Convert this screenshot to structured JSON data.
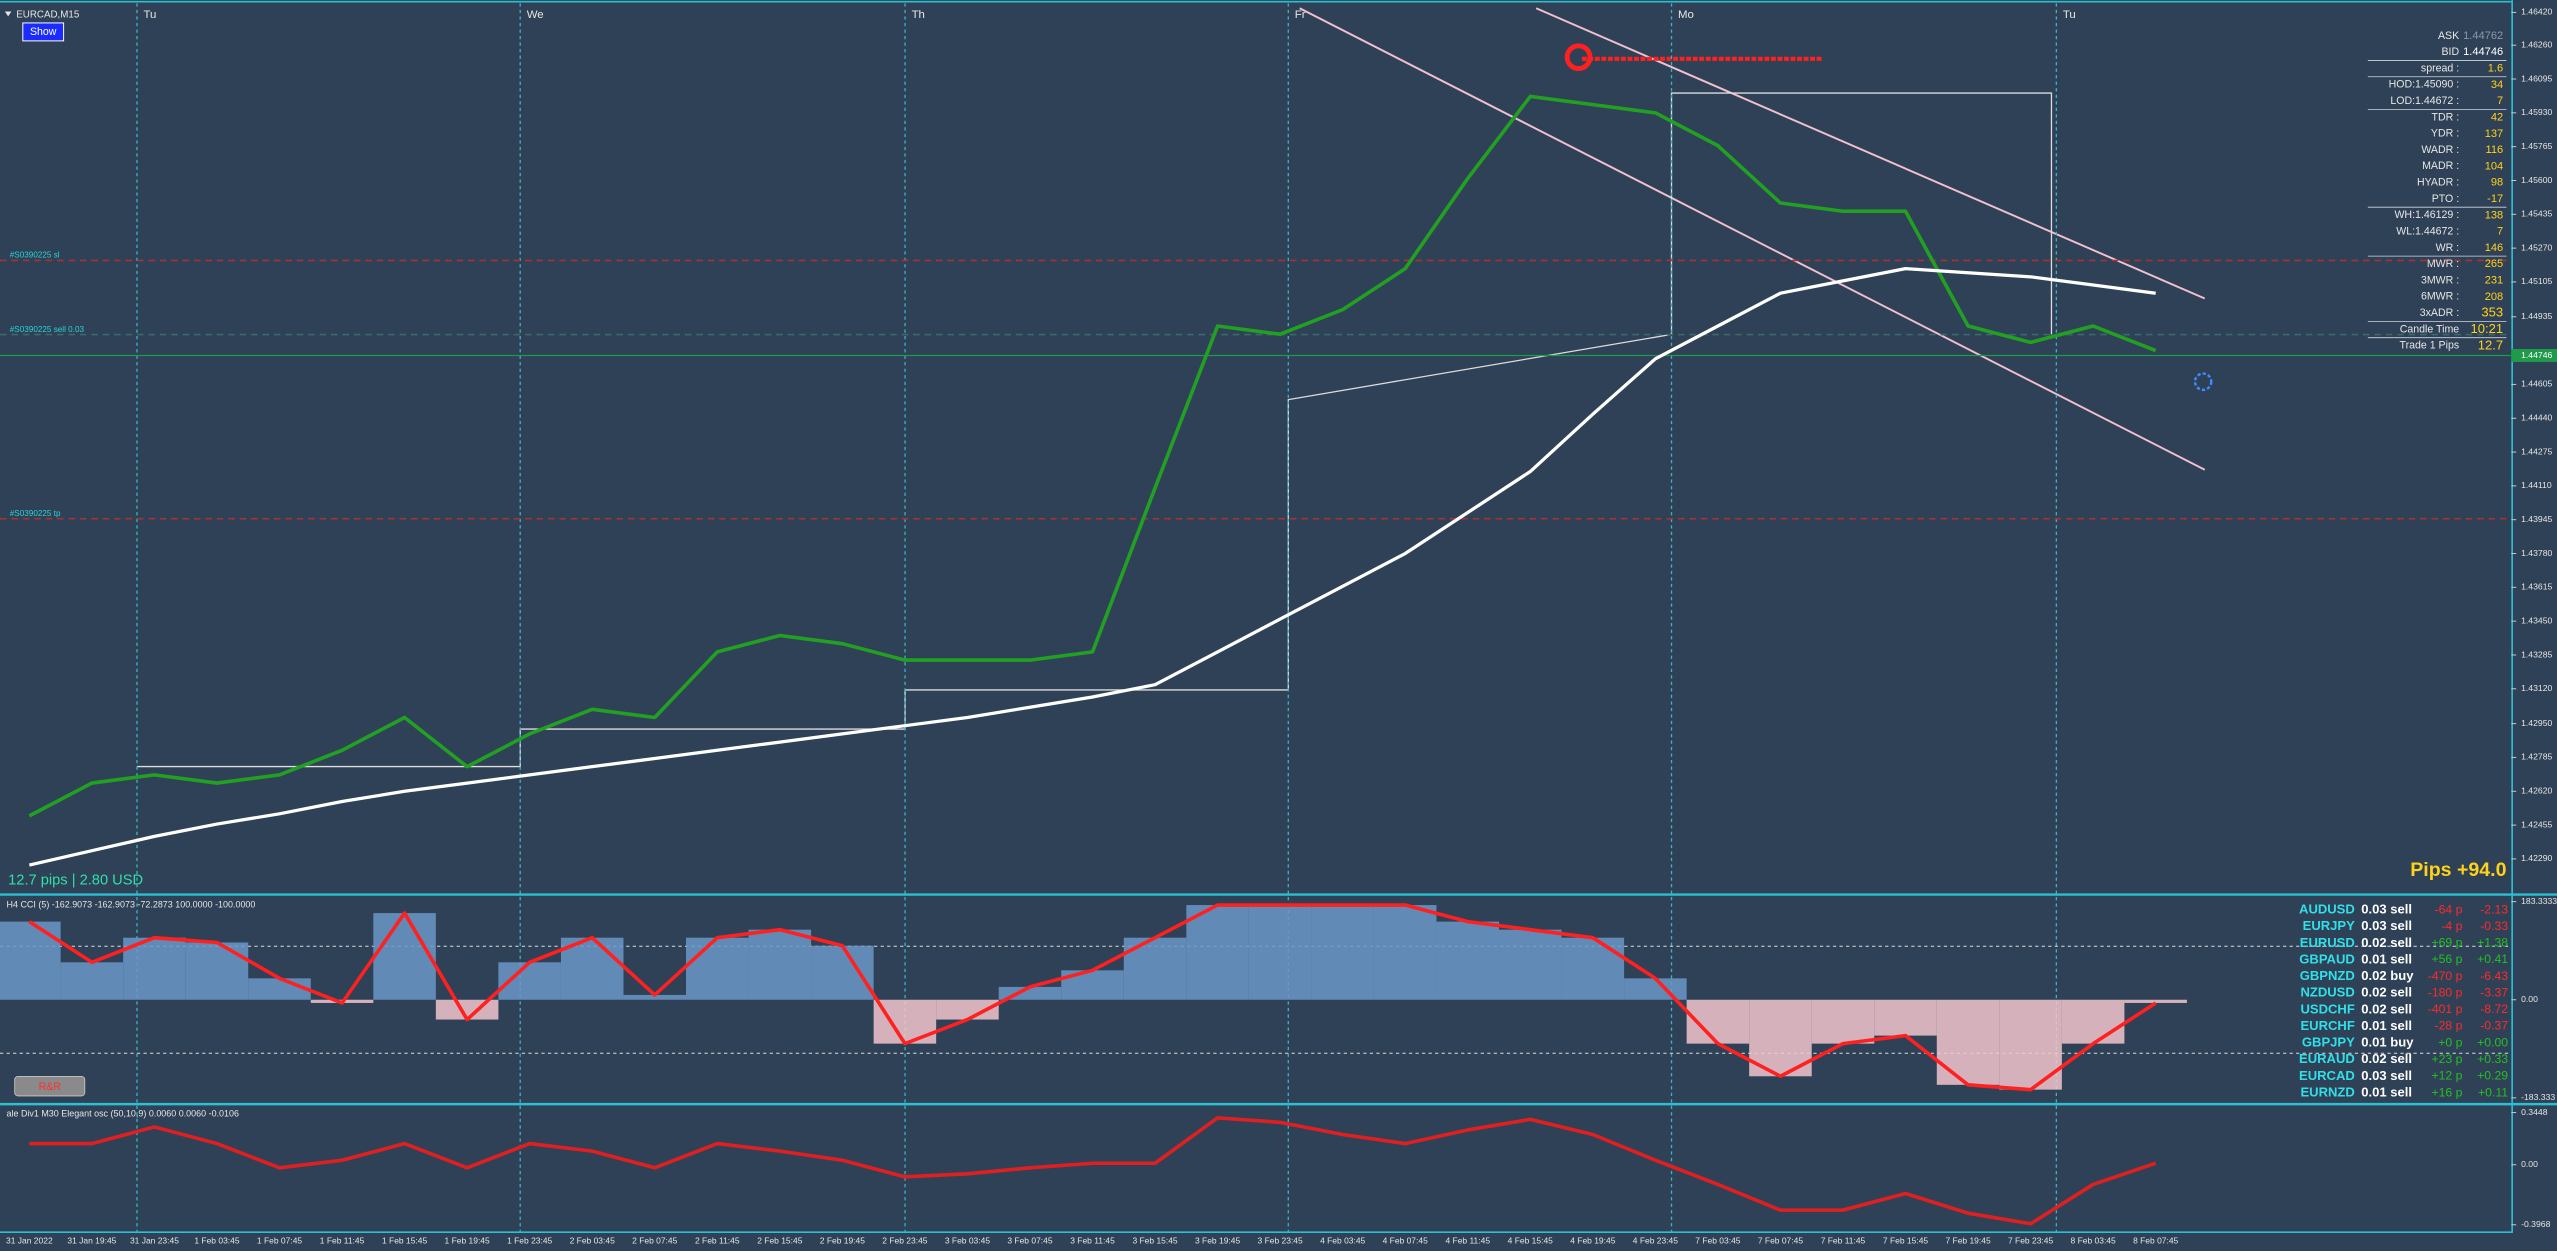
{
  "chart_data": [
    {
      "type": "line",
      "title": "EURCAD,M15",
      "x": [
        "31 Jan 2022",
        "31 Jan 19:45",
        "31 Jan 23:45",
        "1 Feb 03:45",
        "1 Feb 07:45",
        "1 Feb 11:45",
        "1 Feb 15:45",
        "1 Feb 19:45",
        "1 Feb 23:45",
        "2 Feb 03:45",
        "2 Feb 07:45",
        "2 Feb 11:45",
        "2 Feb 15:45",
        "2 Feb 19:45",
        "2 Feb 23:45",
        "3 Feb 03:45",
        "3 Feb 07:45",
        "3 Feb 11:45",
        "3 Feb 15:45",
        "3 Feb 19:45",
        "3 Feb 23:45",
        "4 Feb 03:45",
        "4 Feb 07:45",
        "4 Feb 11:45",
        "4 Feb 15:45",
        "4 Feb 19:45",
        "4 Feb 23:45",
        "7 Feb 03:45",
        "7 Feb 07:45",
        "7 Feb 11:45",
        "7 Feb 15:45",
        "7 Feb 19:45",
        "7 Feb 23:45",
        "8 Feb 03:45",
        "8 Feb 07:45"
      ],
      "series": [
        {
          "color": "#22a022",
          "values": [
            1.425,
            1.4266,
            1.427,
            1.4266,
            1.427,
            1.4282,
            1.4298,
            1.4274,
            1.429,
            1.4302,
            1.4298,
            1.433,
            1.4338,
            1.4334,
            1.4326,
            1.4326,
            1.4326,
            1.433,
            1.441,
            1.4489,
            1.4485,
            1.4497,
            1.4517,
            1.4561,
            1.4601,
            1.4597,
            1.4593,
            1.4577,
            1.4549,
            1.4545,
            1.4545,
            1.4489,
            1.4481,
            1.4489,
            1.4477
          ]
        },
        {
          "color": "#ffffff",
          "values": [
            1.4226,
            1.4233,
            1.424,
            1.4246,
            1.4251,
            1.4257,
            1.4262,
            1.4266,
            1.427,
            1.4274,
            1.4278,
            1.4282,
            1.4286,
            1.429,
            1.4294,
            1.4298,
            1.4303,
            1.4308,
            1.4314,
            1.433,
            1.4346,
            1.4362,
            1.4378,
            1.4398,
            1.4418,
            1.4446,
            1.4473,
            1.4489,
            1.4505,
            1.4511,
            1.4517,
            1.4515,
            1.4513,
            1.4509,
            1.4505
          ]
        }
      ],
      "ylim": [
        1.4212,
        1.4648
      ],
      "yticks": [
        {
          "value": 1.4642,
          "label": "1.46420"
        },
        {
          "value": 1.4626,
          "label": "1.46260"
        },
        {
          "value": 1.46095,
          "label": "1.46095"
        },
        {
          "value": 1.4593,
          "label": "1.45930"
        },
        {
          "value": 1.45765,
          "label": "1.45765"
        },
        {
          "value": 1.456,
          "label": "1.45600"
        },
        {
          "value": 1.45435,
          "label": "1.45435"
        },
        {
          "value": 1.4527,
          "label": "1.45270"
        },
        {
          "value": 1.45105,
          "label": "1.45105"
        },
        {
          "value": 1.44935,
          "label": "1.44935"
        },
        {
          "value": 1.44605,
          "label": "1.44605"
        },
        {
          "value": 1.4444,
          "label": "1.44440"
        },
        {
          "value": 1.44275,
          "label": "1.44275"
        },
        {
          "value": 1.4411,
          "label": "1.44110"
        },
        {
          "value": 1.43945,
          "label": "1.43945"
        },
        {
          "value": 1.4378,
          "label": "1.43780"
        },
        {
          "value": 1.43615,
          "label": "1.43615"
        },
        {
          "value": 1.4345,
          "label": "1.43450"
        },
        {
          "value": 1.43285,
          "label": "1.43285"
        },
        {
          "value": 1.4312,
          "label": "1.43120"
        },
        {
          "value": 1.4295,
          "label": "1.42950"
        },
        {
          "value": 1.42785,
          "label": "1.42785"
        },
        {
          "value": 1.4262,
          "label": "1.42620"
        },
        {
          "value": 1.42455,
          "label": "1.42455"
        },
        {
          "value": 1.4229,
          "label": "1.42290"
        }
      ],
      "current_price": {
        "value": 1.44746,
        "label": "1.44746"
      },
      "levels": [
        {
          "label": "#S0390225 sl",
          "value": 1.4521,
          "color": "#a83232"
        },
        {
          "label": "#S0390225 sell 0.03",
          "value": 1.44848,
          "color": "#3a6a6a"
        },
        {
          "label": "#S0390225 tp",
          "value": 1.4395,
          "color": "#a83232"
        }
      ],
      "days": [
        "Tu",
        "We",
        "Th",
        "Fr",
        "Mo",
        "Tu"
      ]
    },
    {
      "type": "line",
      "title": "H4 CCI (5) -162.9073 -162.9073 -72.2873 100.0000 -100.0000",
      "series": [
        {
          "color": "#ff2020",
          "values": [
            146,
            70,
            116,
            107,
            40,
            -6,
            162,
            -37,
            70,
            116,
            9,
            116,
            131,
            101,
            -82,
            -37,
            24,
            55,
            116,
            177,
            177,
            177,
            177,
            146,
            131,
            116,
            40,
            -82,
            -143,
            -82,
            -67,
            -159,
            -168,
            -82,
            -6
          ]
        }
      ],
      "ylim": [
        -192,
        192
      ],
      "yticks": [
        {
          "value": 183.3333,
          "label": "183.3333"
        },
        {
          "value": 0,
          "label": "0.00"
        },
        {
          "value": -183.333,
          "label": "-183.333"
        }
      ],
      "levels": [
        100,
        -100
      ],
      "histogram_colors": [
        "#6b98c8",
        "#f2c6cc"
      ]
    },
    {
      "type": "line",
      "title": "ale Div1 M30 Elegant osc (50,10,9) 0.0060 0.0060 -0.0106",
      "series": [
        {
          "color": "#e02020",
          "values": [
            0.14,
            0.14,
            0.25,
            0.14,
            -0.02,
            0.03,
            0.14,
            -0.02,
            0.14,
            0.09,
            -0.02,
            0.14,
            0.09,
            0.03,
            -0.08,
            -0.06,
            -0.02,
            0.01,
            0.01,
            0.31,
            0.28,
            0.2,
            0.14,
            0.23,
            0.3,
            0.2,
            0.03,
            -0.13,
            -0.3,
            -0.3,
            -0.19,
            -0.32,
            -0.39,
            -0.13,
            0.01
          ]
        }
      ],
      "ylim": [
        -0.44,
        0.39
      ],
      "yticks": [
        {
          "value": 0.3448,
          "label": "0.3448"
        },
        {
          "value": 0,
          "label": "0.00"
        },
        {
          "value": -0.3968,
          "label": "-0.3968"
        }
      ]
    }
  ],
  "show_button": "Show",
  "info_panel": {
    "rows": [
      [
        "ASK",
        "1.44762"
      ],
      [
        "BID",
        "1.44746"
      ],
      [
        "spread :",
        "1.6"
      ],
      [
        "HOD:1.45090 :",
        "34"
      ],
      [
        "LOD:1.44672 :",
        "7"
      ],
      [
        "TDR :",
        "42"
      ],
      [
        "YDR :",
        "137"
      ],
      [
        "WADR :",
        "116"
      ],
      [
        "MADR :",
        "104"
      ],
      [
        "HYADR :",
        "98"
      ],
      [
        "PTO :",
        "-17"
      ],
      [
        "WH:1.46129 :",
        "138"
      ],
      [
        "WL:1.44672 :",
        "7"
      ],
      [
        "WR :",
        "146"
      ],
      [
        "MWR :",
        "265"
      ],
      [
        "3MWR :",
        "231"
      ],
      [
        "6MWR :",
        "208"
      ],
      [
        "3xADR :",
        "353"
      ],
      [
        "Candle Time",
        "10:21"
      ],
      [
        "Trade 1 Pips",
        "12.7"
      ]
    ]
  },
  "trade_summary": "12.7 pips | 2.80 USD",
  "total_pips": "Pips +94.0",
  "rr_button": "R&R",
  "positions": {
    "rows": [
      [
        "AUDUSD",
        "0.03 sell",
        "-64 p",
        "-2.13"
      ],
      [
        "EURJPY",
        "0.03 sell",
        "-4 p",
        "-0.33"
      ],
      [
        "EURUSD",
        "0.02 sell",
        "+69 p",
        "+1.38"
      ],
      [
        "GBPAUD",
        "0.01 sell",
        "+56 p",
        "+0.41"
      ],
      [
        "GBPNZD",
        "0.02 buy",
        "-470 p",
        "-6.43"
      ],
      [
        "NZDUSD",
        "0.02 sell",
        "-180 p",
        "-3.37"
      ],
      [
        "USDCHF",
        "0.02 sell",
        "-401 p",
        "-8.72"
      ],
      [
        "EURCHF",
        "0.01 sell",
        "-28 p",
        "-0.37"
      ],
      [
        "GBPJPY",
        "0.01 buy",
        "+0 p",
        "+0.00"
      ],
      [
        "EURAUD",
        "0.02 sell",
        "+23 p",
        "+0.33"
      ],
      [
        "EURCAD",
        "0.03 sell",
        "+12 p",
        "+0.29"
      ],
      [
        "EURNZD",
        "0.01 sell",
        "+16 p",
        "+0.11"
      ]
    ]
  }
}
